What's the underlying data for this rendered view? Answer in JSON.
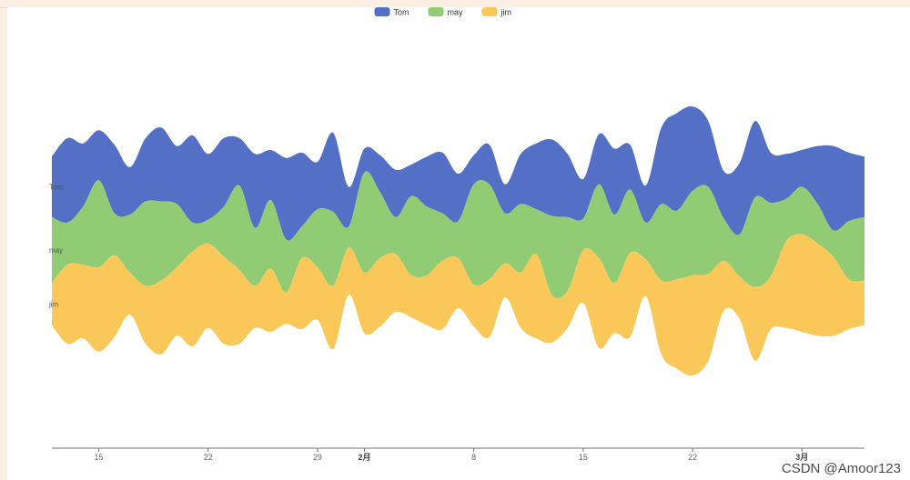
{
  "chart_data": {
    "type": "area",
    "subtype": "themeRiver",
    "legend": {
      "position": "top-center",
      "items": [
        {
          "label": "Tom",
          "color": "#5470c6"
        },
        {
          "label": "may",
          "color": "#91cc75"
        },
        {
          "label": "jim",
          "color": "#fac858"
        }
      ]
    },
    "x_tick_labels": [
      {
        "label": "15",
        "major": false
      },
      {
        "label": "22",
        "major": false
      },
      {
        "label": "29",
        "major": false
      },
      {
        "label": "2月",
        "major": true
      },
      {
        "label": "8",
        "major": false
      },
      {
        "label": "15",
        "major": false
      },
      {
        "label": "22",
        "major": false
      },
      {
        "label": "3月",
        "major": true
      }
    ],
    "x_range": [
      "2015-01-12",
      "2015-03-05"
    ],
    "dates": [
      "2015-01-12",
      "2015-01-13",
      "2015-01-14",
      "2015-01-15",
      "2015-01-16",
      "2015-01-17",
      "2015-01-18",
      "2015-01-19",
      "2015-01-20",
      "2015-01-21",
      "2015-01-22",
      "2015-01-23",
      "2015-01-24",
      "2015-01-25",
      "2015-01-26",
      "2015-01-27",
      "2015-01-28",
      "2015-01-29",
      "2015-01-30",
      "2015-01-31",
      "2015-02-01",
      "2015-02-02",
      "2015-02-03",
      "2015-02-04",
      "2015-02-05",
      "2015-02-06",
      "2015-02-07",
      "2015-02-08",
      "2015-02-09",
      "2015-02-10",
      "2015-02-11",
      "2015-02-12",
      "2015-02-13",
      "2015-02-14",
      "2015-02-15",
      "2015-02-16",
      "2015-02-17",
      "2015-02-18",
      "2015-02-19",
      "2015-02-20",
      "2015-02-21",
      "2015-02-22",
      "2015-02-23",
      "2015-02-24",
      "2015-02-25",
      "2015-02-26",
      "2015-02-27",
      "2015-02-28",
      "2015-03-01",
      "2015-03-02",
      "2015-03-03",
      "2015-03-04",
      "2015-03-05"
    ],
    "series": [
      {
        "name": "Tom",
        "color": "#5470c6",
        "values": [
          115,
          160,
          120,
          95,
          130,
          90,
          120,
          140,
          110,
          165,
          125,
          130,
          90,
          140,
          95,
          155,
          140,
          90,
          150,
          75,
          45,
          70,
          90,
          60,
          95,
          115,
          90,
          55,
          75,
          55,
          95,
          125,
          145,
          120,
          75,
          95,
          125,
          85,
          70,
          145,
          185,
          160,
          125,
          90,
          135,
          145,
          95,
          85,
          70,
          110,
          160,
          130,
          115
        ]
      },
      {
        "name": "may",
        "color": "#91cc75",
        "values": [
          125,
          80,
          110,
          165,
          80,
          110,
          160,
          150,
          120,
          55,
          45,
          95,
          160,
          110,
          130,
          100,
          60,
          110,
          140,
          40,
          190,
          125,
          70,
          150,
          130,
          90,
          70,
          190,
          180,
          95,
          130,
          85,
          150,
          140,
          60,
          140,
          130,
          120,
          70,
          145,
          130,
          160,
          165,
          80,
          80,
          170,
          140,
          80,
          90,
          75,
          50,
          110,
          120
        ]
      },
      {
        "name": "jim",
        "color": "#fac858",
        "values": [
          80,
          150,
          140,
          160,
          155,
          80,
          110,
          140,
          130,
          180,
          160,
          165,
          140,
          80,
          120,
          60,
          135,
          100,
          120,
          90,
          115,
          130,
          110,
          80,
          95,
          130,
          95,
          80,
          110,
          65,
          105,
          160,
          90,
          70,
          100,
          170,
          95,
          160,
          70,
          140,
          170,
          190,
          165,
          95,
          80,
          140,
          100,
          165,
          185,
          175,
          150,
          95,
          85
        ]
      }
    ]
  },
  "watermark": "CSDN @Amoor123"
}
